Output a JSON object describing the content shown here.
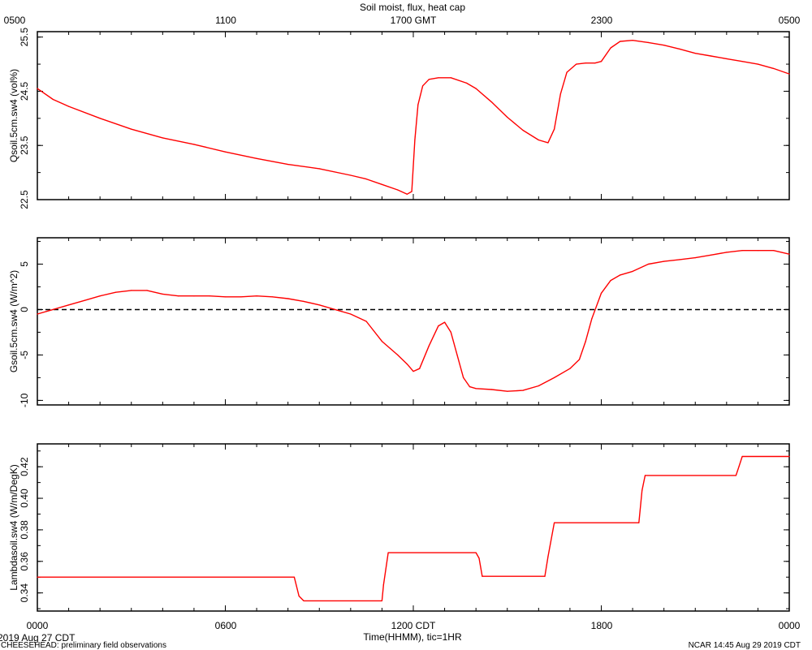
{
  "title": "Soil moist, flux, heat cap",
  "top_axis": {
    "labels": [
      "0500",
      "1100",
      "1700 GMT",
      "2300",
      "0500"
    ]
  },
  "bottom_axis": {
    "labels": [
      "0000",
      "0600",
      "1200 CDT",
      "1800",
      "0000"
    ],
    "title": "Time(HHMM), tic=1HR"
  },
  "footer": {
    "date": "2019 Aug 27 CDT",
    "project": "CHEESEHEAD: preliminary field observations",
    "stamp": "NCAR 14:45 Aug 29 2019 CDT"
  },
  "colors": {
    "series": "#ff0000",
    "axes": "#000000",
    "zero_line": "#000000"
  },
  "chart_data": [
    {
      "type": "line",
      "ylabel": "Qsoil.5cm.sw4 (vol%)",
      "ylim": [
        22.5,
        25.6
      ],
      "yticks": [
        "22.5",
        "23.5",
        "24.5",
        "25.5"
      ],
      "x_unit": "hours since 0000 CDT",
      "series": [
        {
          "x": [
            0,
            0.5,
            1,
            2,
            3,
            4,
            5,
            6,
            7,
            8,
            9,
            10,
            10.5,
            11,
            11.5,
            11.8,
            11.95,
            12.05,
            12.15,
            12.3,
            12.5,
            12.8,
            13.2,
            13.7,
            14,
            14.5,
            15,
            15.5,
            16,
            16.3,
            16.5,
            16.7,
            16.9,
            17.2,
            17.5,
            17.8,
            18,
            18.3,
            18.6,
            19,
            19.5,
            20,
            20.5,
            21,
            21.5,
            22,
            22.5,
            23,
            23.5,
            24
          ],
          "y": [
            24.55,
            24.35,
            24.22,
            24.0,
            23.8,
            23.64,
            23.52,
            23.38,
            23.26,
            23.15,
            23.07,
            22.95,
            22.88,
            22.78,
            22.68,
            22.6,
            22.65,
            23.6,
            24.25,
            24.6,
            24.72,
            24.75,
            24.75,
            24.65,
            24.55,
            24.3,
            24.02,
            23.78,
            23.6,
            23.55,
            23.8,
            24.45,
            24.85,
            25.0,
            25.02,
            25.02,
            25.05,
            25.3,
            25.42,
            25.44,
            25.4,
            25.35,
            25.28,
            25.2,
            25.15,
            25.1,
            25.05,
            25.0,
            24.92,
            24.82
          ]
        }
      ]
    },
    {
      "type": "line",
      "ylabel": "Gsoil.5cm.sw4 (W/m^2)",
      "ylim": [
        -10.5,
        7.9
      ],
      "yticks": [
        "-10",
        "-5",
        "0",
        "5"
      ],
      "reference_line": 0,
      "x_unit": "hours since 0000 CDT",
      "series": [
        {
          "x": [
            0,
            0.5,
            1,
            1.5,
            2,
            2.5,
            3,
            3.5,
            4,
            4.5,
            5,
            5.5,
            6,
            6.5,
            7,
            7.5,
            8,
            8.5,
            9,
            9.5,
            10,
            10.5,
            11,
            11.5,
            11.8,
            12,
            12.2,
            12.5,
            12.8,
            13,
            13.2,
            13.4,
            13.6,
            13.8,
            14,
            14.5,
            15,
            15.5,
            16,
            16.5,
            17,
            17.3,
            17.5,
            17.7,
            18,
            18.3,
            18.6,
            19,
            19.5,
            20,
            20.5,
            21,
            21.5,
            22,
            22.5,
            23,
            23.5,
            24
          ],
          "y": [
            -0.5,
            0.0,
            0.5,
            1.0,
            1.5,
            1.9,
            2.1,
            2.1,
            1.7,
            1.5,
            1.5,
            1.5,
            1.4,
            1.4,
            1.5,
            1.4,
            1.2,
            0.9,
            0.5,
            0.0,
            -0.5,
            -1.3,
            -3.5,
            -5.0,
            -6.0,
            -6.8,
            -6.5,
            -4.0,
            -1.8,
            -1.4,
            -2.5,
            -5.0,
            -7.5,
            -8.5,
            -8.7,
            -8.8,
            -9.0,
            -8.9,
            -8.4,
            -7.5,
            -6.5,
            -5.5,
            -3.5,
            -1.0,
            1.8,
            3.2,
            3.8,
            4.2,
            5.0,
            5.3,
            5.5,
            5.7,
            6.0,
            6.3,
            6.5,
            6.5,
            6.5,
            6.1
          ]
        }
      ]
    },
    {
      "type": "line",
      "ylabel": "Lambdasoil.sw4 (W/m/DegK)",
      "ylim": [
        0.3285,
        0.4345
      ],
      "yticks": [
        "0.34",
        "0.36",
        "0.38",
        "0.40",
        "0.42"
      ],
      "x_unit": "hours since 0000 CDT",
      "series": [
        {
          "x": [
            0,
            8.2,
            8.35,
            8.5,
            11.0,
            11.05,
            11.2,
            14.0,
            14.1,
            14.2,
            16.2,
            16.3,
            16.5,
            19.2,
            19.3,
            19.4,
            22.3,
            22.4,
            22.5,
            24
          ],
          "y": [
            0.35,
            0.35,
            0.338,
            0.335,
            0.335,
            0.345,
            0.3655,
            0.3655,
            0.362,
            0.3505,
            0.3505,
            0.363,
            0.3845,
            0.3845,
            0.405,
            0.4145,
            0.4145,
            0.4205,
            0.4265,
            0.4265
          ]
        }
      ]
    }
  ]
}
